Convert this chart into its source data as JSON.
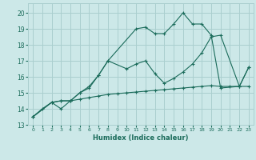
{
  "xlabel": "Humidex (Indice chaleur)",
  "bg_color": "#cce8e8",
  "grid_color": "#aacfcf",
  "line_color": "#1a6b5a",
  "xlim": [
    -0.5,
    23.5
  ],
  "ylim": [
    13.0,
    20.6
  ],
  "yticks": [
    13,
    14,
    15,
    16,
    17,
    18,
    19,
    20
  ],
  "xticks": [
    0,
    1,
    2,
    3,
    4,
    5,
    6,
    7,
    8,
    9,
    10,
    11,
    12,
    13,
    14,
    15,
    16,
    17,
    18,
    19,
    20,
    21,
    22,
    23
  ],
  "line1_x": [
    0,
    2,
    3,
    4,
    5,
    6,
    7,
    8,
    11,
    12,
    13,
    14,
    15,
    16,
    17,
    18,
    19,
    20,
    22,
    23
  ],
  "line1_y": [
    13.5,
    14.4,
    14.0,
    14.5,
    15.0,
    15.4,
    16.1,
    17.0,
    19.0,
    19.1,
    18.7,
    18.7,
    19.3,
    20.0,
    19.3,
    19.3,
    18.6,
    15.3,
    15.4,
    16.6
  ],
  "line2_x": [
    0,
    2,
    3,
    4,
    5,
    6,
    7,
    8,
    10,
    11,
    12,
    13,
    14,
    15,
    16,
    17,
    18,
    19,
    20,
    22,
    23
  ],
  "line2_y": [
    13.5,
    14.4,
    14.5,
    14.5,
    15.0,
    15.3,
    16.1,
    17.0,
    16.5,
    16.8,
    17.0,
    16.2,
    15.6,
    15.9,
    16.3,
    16.8,
    17.5,
    18.5,
    18.6,
    15.4,
    16.6
  ],
  "line3_x": [
    0,
    1,
    2,
    3,
    4,
    5,
    6,
    7,
    8,
    9,
    10,
    11,
    12,
    13,
    14,
    15,
    16,
    17,
    18,
    19,
    20,
    21,
    22,
    23
  ],
  "line3_y": [
    13.5,
    14.0,
    14.4,
    14.5,
    14.5,
    14.6,
    14.7,
    14.8,
    14.9,
    14.95,
    15.0,
    15.05,
    15.1,
    15.15,
    15.2,
    15.25,
    15.3,
    15.35,
    15.4,
    15.45,
    15.4,
    15.4,
    15.4,
    15.4
  ]
}
